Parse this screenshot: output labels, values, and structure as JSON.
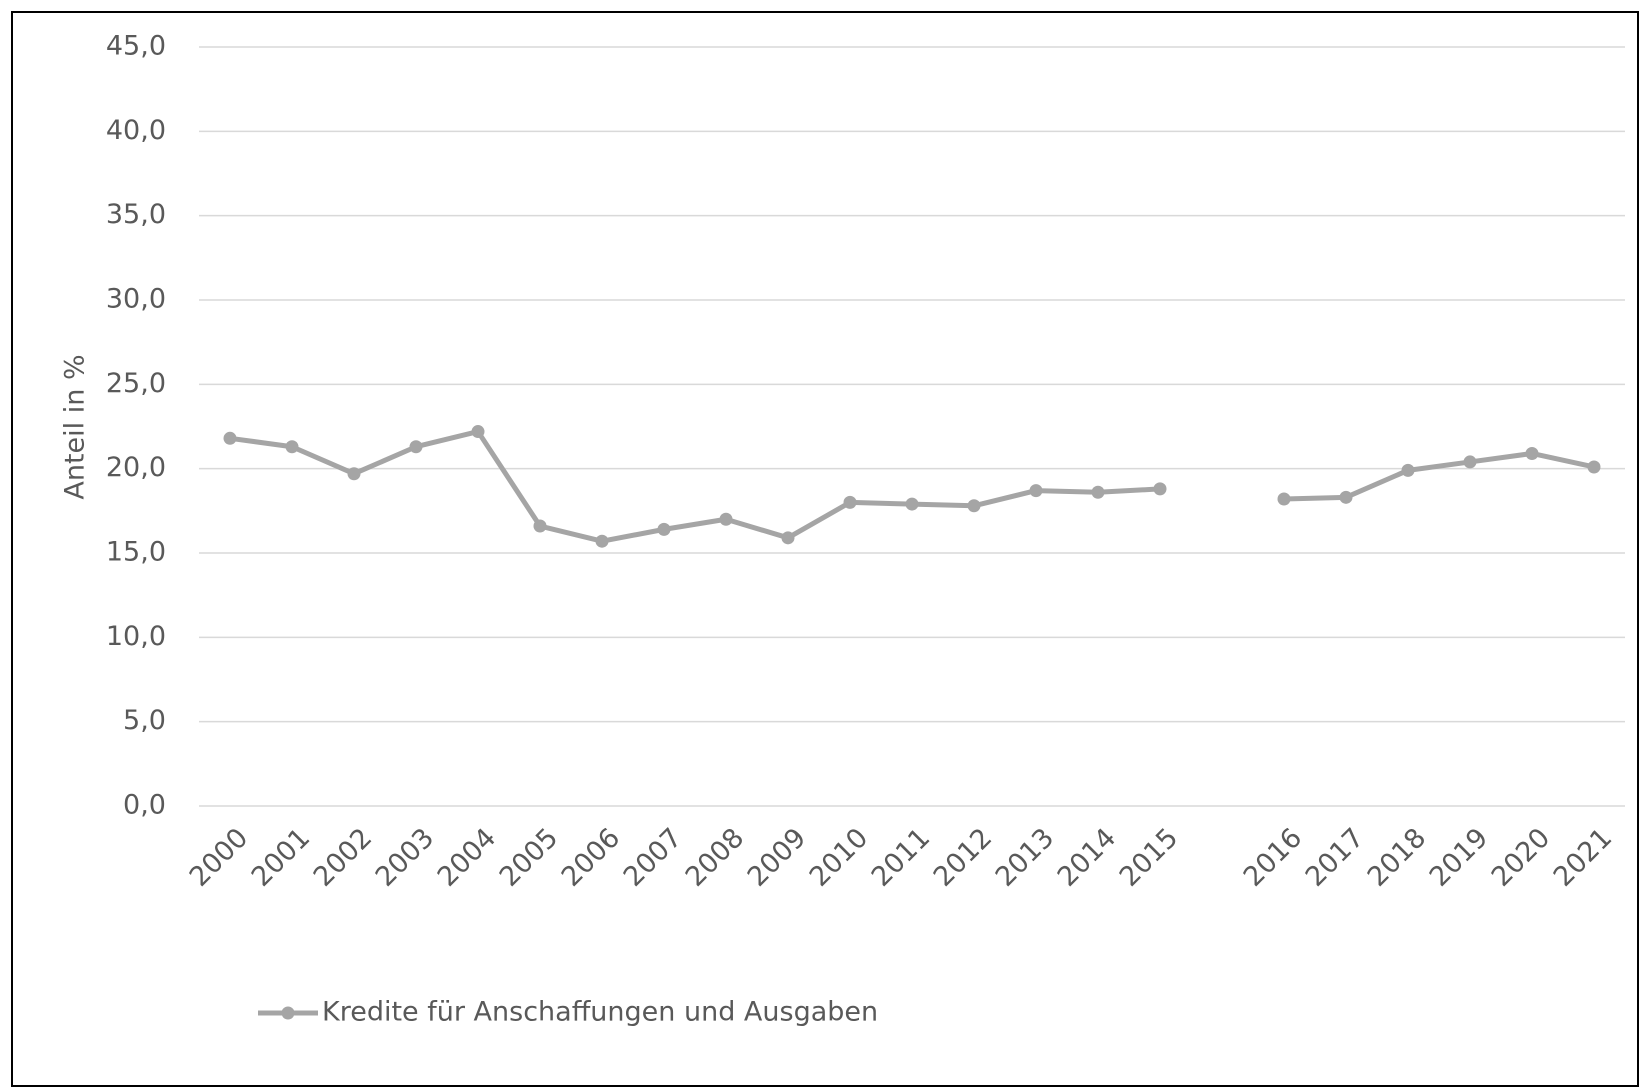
{
  "chart_data": {
    "type": "line",
    "y_label": "Anteil in %",
    "categories": [
      "2000",
      "2001",
      "2002",
      "2003",
      "2004",
      "2005",
      "2006",
      "2007",
      "2008",
      "2009",
      "2010",
      "2011",
      "2012",
      "2013",
      "2014",
      "2015",
      null,
      "2016",
      "2017",
      "2018",
      "2019",
      "2020",
      "2021"
    ],
    "series": [
      {
        "name": "Kredite für Anschaffungen und Ausgaben",
        "color": "#a5a5a5",
        "values": [
          21.8,
          21.3,
          19.7,
          21.3,
          22.2,
          16.6,
          15.7,
          16.4,
          17.0,
          15.9,
          18.0,
          17.9,
          17.8,
          18.7,
          18.6,
          18.8,
          null,
          18.2,
          18.3,
          19.9,
          20.4,
          20.9,
          20.1
        ]
      }
    ],
    "ylim": [
      0,
      45
    ],
    "yticks": [
      {
        "value": 0,
        "label": "0,0"
      },
      {
        "value": 5,
        "label": "5,0"
      },
      {
        "value": 10,
        "label": "10,0"
      },
      {
        "value": 15,
        "label": "15,0"
      },
      {
        "value": 20,
        "label": "20,0"
      },
      {
        "value": 25,
        "label": "25,0"
      },
      {
        "value": 30,
        "label": "30,0"
      },
      {
        "value": 35,
        "label": "35,0"
      },
      {
        "value": 40,
        "label": "40,0"
      },
      {
        "value": 45,
        "label": "45,0"
      }
    ],
    "grid": true,
    "legend": "bottom"
  }
}
